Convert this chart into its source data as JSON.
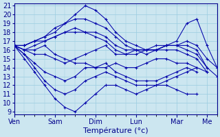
{
  "title": "Température (°c)",
  "bg_color": "#cce6f0",
  "grid_color": "#99cce0",
  "line_color": "#0000aa",
  "ylim_low": 9,
  "ylim_high": 21,
  "xlim": [
    0,
    120
  ],
  "day_labels": [
    "Ven",
    "Sam",
    "Dim",
    "Lun",
    "Mar",
    "Me"
  ],
  "day_positions": [
    0,
    24,
    48,
    72,
    96,
    114
  ],
  "series": [
    [
      0,
      16.5,
      6,
      15.5,
      12,
      14.5,
      18,
      13.5,
      24,
      13.0,
      30,
      12.5,
      36,
      13.0,
      42,
      14.0,
      48,
      14.0,
      54,
      14.5,
      60,
      13.5,
      66,
      13.0,
      72,
      12.5,
      78,
      12.5,
      84,
      12.5,
      90,
      13.0,
      96,
      13.5,
      102,
      14.0,
      108,
      13.5
    ],
    [
      0,
      16.5,
      6,
      15.5,
      12,
      14.0,
      18,
      12.5,
      24,
      11.5,
      30,
      11.0,
      36,
      11.5,
      42,
      12.5,
      48,
      13.0,
      54,
      13.5,
      60,
      13.0,
      66,
      12.5,
      72,
      12.0,
      78,
      12.0,
      84,
      12.0,
      90,
      12.5,
      96,
      13.0,
      102,
      13.5,
      108,
      14.0
    ],
    [
      0,
      16.5,
      6,
      15.0,
      12,
      13.5,
      18,
      12.0,
      24,
      10.5,
      30,
      9.5,
      36,
      9.0,
      42,
      10.0,
      48,
      11.0,
      54,
      12.0,
      60,
      12.0,
      66,
      11.5,
      72,
      11.0,
      78,
      11.5,
      84,
      12.0,
      90,
      12.0,
      96,
      11.5,
      102,
      11.0,
      108,
      11.0
    ],
    [
      0,
      16.5,
      6,
      16.0,
      12,
      15.5,
      18,
      15.5,
      24,
      15.0,
      30,
      14.5,
      36,
      15.0,
      42,
      15.5,
      48,
      16.0,
      54,
      16.5,
      60,
      15.5,
      66,
      15.5,
      72,
      16.0,
      78,
      16.0,
      84,
      16.0,
      90,
      16.5,
      96,
      16.5,
      102,
      16.0,
      108,
      15.5,
      114,
      14.0
    ],
    [
      0,
      16.5,
      6,
      16.5,
      12,
      17.0,
      18,
      17.5,
      24,
      18.0,
      30,
      19.0,
      36,
      20.0,
      42,
      21.0,
      48,
      20.5,
      54,
      19.5,
      60,
      18.0,
      66,
      17.0,
      72,
      16.5,
      78,
      16.0,
      84,
      16.0,
      90,
      16.5,
      96,
      17.0,
      102,
      19.0,
      108,
      19.5,
      114,
      16.5,
      120,
      14.0
    ],
    [
      0,
      16.5,
      6,
      16.5,
      12,
      17.0,
      18,
      17.5,
      24,
      18.5,
      30,
      19.0,
      36,
      19.5,
      42,
      19.5,
      48,
      19.0,
      54,
      18.5,
      60,
      17.5,
      66,
      16.5,
      72,
      16.0,
      78,
      15.5,
      84,
      16.0,
      90,
      16.0,
      96,
      16.0,
      102,
      15.5,
      108,
      15.0,
      114,
      13.5
    ],
    [
      0,
      16.5,
      6,
      16.0,
      12,
      16.5,
      18,
      17.0,
      24,
      17.5,
      30,
      18.0,
      36,
      18.5,
      42,
      18.0,
      48,
      17.5,
      54,
      17.0,
      60,
      16.0,
      66,
      15.5,
      72,
      15.5,
      78,
      16.0,
      84,
      16.0,
      90,
      16.5,
      96,
      16.5,
      102,
      16.5,
      108,
      16.0,
      114,
      14.0,
      120,
      13.0
    ],
    [
      0,
      16.5,
      6,
      16.5,
      12,
      17.0,
      18,
      17.0,
      24,
      17.5,
      30,
      18.0,
      36,
      18.0,
      42,
      18.0,
      48,
      18.0,
      54,
      17.5,
      60,
      16.5,
      66,
      16.0,
      72,
      16.0,
      78,
      16.0,
      84,
      16.5,
      90,
      16.5,
      96,
      16.5,
      102,
      17.0,
      108,
      16.5,
      114,
      15.0,
      120,
      14.0
    ],
    [
      0,
      16.5,
      6,
      16.0,
      12,
      16.0,
      18,
      16.5,
      24,
      15.5,
      30,
      15.0,
      36,
      14.5,
      42,
      14.5,
      48,
      14.0,
      54,
      14.0,
      60,
      14.5,
      66,
      14.0,
      72,
      14.0,
      78,
      14.5,
      84,
      15.0,
      90,
      15.0,
      96,
      14.5,
      102,
      14.5,
      108,
      14.0,
      114,
      13.5
    ]
  ]
}
